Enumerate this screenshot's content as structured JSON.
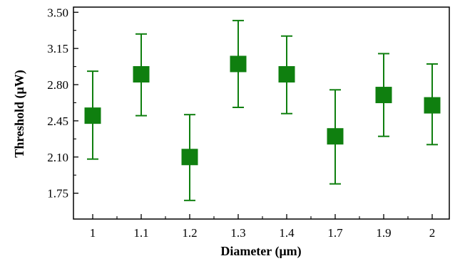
{
  "chart_data": {
    "type": "scatter",
    "xlabel": "Diameter (μm)",
    "ylabel": "Threshold (μW)",
    "categories": [
      "1",
      "1.1",
      "1.2",
      "1.3",
      "1.4",
      "1.7",
      "1.9",
      "2"
    ],
    "ylim": [
      1.5,
      3.55
    ],
    "yticks": [
      "1.75",
      "2.10",
      "2.45",
      "2.80",
      "3.15",
      "3.50"
    ],
    "grid": false,
    "series": [
      {
        "marker": "square",
        "color": "#0f7f0f",
        "values": [
          2.5,
          2.9,
          2.1,
          3.0,
          2.9,
          2.3,
          2.7,
          2.6
        ],
        "error_low": [
          2.08,
          2.5,
          1.68,
          2.58,
          2.52,
          1.84,
          2.3,
          2.22
        ],
        "error_high": [
          2.93,
          3.29,
          2.51,
          3.42,
          3.27,
          2.75,
          3.1,
          3.0
        ]
      }
    ]
  }
}
